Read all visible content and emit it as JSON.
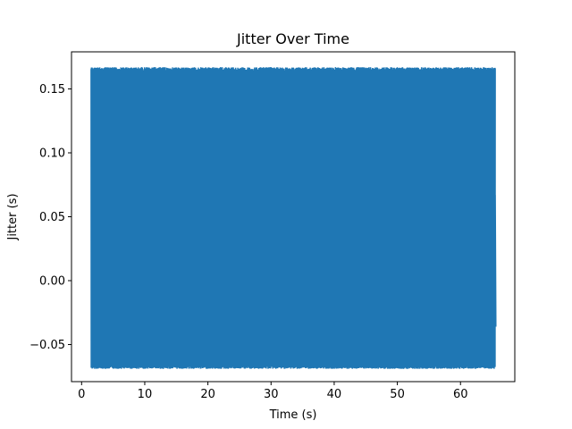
{
  "chart_data": {
    "type": "line",
    "title": "Jitter Over Time",
    "xlabel": "Time (s)",
    "ylabel": "Jitter (s)",
    "xlim": [
      -1.6,
      68.6
    ],
    "ylim": [
      -0.079,
      0.179
    ],
    "xticks": [
      0,
      10,
      20,
      30,
      40,
      50,
      60
    ],
    "xtick_labels": [
      "0",
      "10",
      "20",
      "30",
      "40",
      "50",
      "60"
    ],
    "yticks": [
      -0.05,
      0.0,
      0.05,
      0.1,
      0.15
    ],
    "ytick_labels": [
      "−0.05",
      "0.00",
      "0.05",
      "0.10",
      "0.15"
    ],
    "grid": false,
    "legend": "none",
    "color": "#1f77b4",
    "series": [
      {
        "time_range": [
          1.5,
          65.5
        ],
        "upper_envelope": 0.167,
        "lower_envelope": -0.067,
        "points": [
          {
            "x": 1.5,
            "y": -0.067
          },
          {
            "x": 1.7,
            "y": 0.167
          },
          {
            "x": 9.8,
            "y": 0.134
          },
          {
            "x": 12.2,
            "y": 0.134
          },
          {
            "x": 16.6,
            "y": 0.134
          },
          {
            "x": 24.3,
            "y": 0.134
          },
          {
            "x": 29.8,
            "y": 0.134
          },
          {
            "x": 32.2,
            "y": 0.134
          },
          {
            "x": 38.6,
            "y": 0.134
          },
          {
            "x": 46.8,
            "y": 0.134
          },
          {
            "x": 65.3,
            "y": -0.067
          },
          {
            "x": 65.5,
            "y": 0.067
          },
          {
            "x": 65.6,
            "y": -0.036
          }
        ]
      }
    ]
  }
}
